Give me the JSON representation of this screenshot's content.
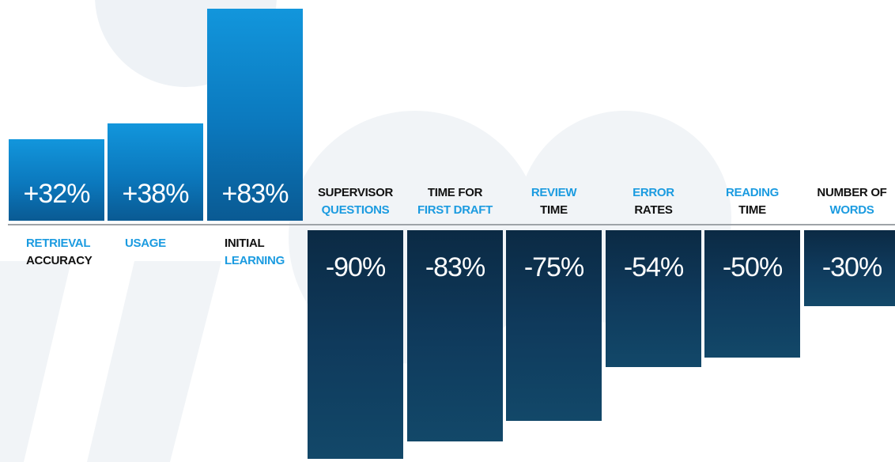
{
  "chart_data": {
    "type": "bar",
    "title": "",
    "xlabel": "",
    "ylabel": "",
    "ylim": [
      -90,
      83
    ],
    "grid": false,
    "legend": "none",
    "colors": {
      "positive": "#0b83cc",
      "negative": "#0f3a5c",
      "label_accent": "#1b9be0",
      "label_dark": "#111111"
    },
    "bars": [
      {
        "id": "retrieval-accuracy",
        "value": 32,
        "label": "+32%",
        "line1": "RETRIEVAL",
        "line1_color": "blue",
        "line2": "ACCURACY",
        "line2_color": "black"
      },
      {
        "id": "usage",
        "value": 38,
        "label": "+38%",
        "line1": "USAGE",
        "line1_color": "blue",
        "line2": "",
        "line2_color": "black"
      },
      {
        "id": "initial-learning",
        "value": 83,
        "label": "+83%",
        "line1": "INITIAL",
        "line1_color": "black",
        "line2": "LEARNING",
        "line2_color": "blue"
      },
      {
        "id": "supervisor-questions",
        "value": -90,
        "label": "-90%",
        "line1": "SUPERVISOR",
        "line1_color": "black",
        "line2": "QUESTIONS",
        "line2_color": "blue"
      },
      {
        "id": "time-for-first-draft",
        "value": -83,
        "label": "-83%",
        "line1": "TIME FOR",
        "line1_color": "black",
        "line2": "FIRST DRAFT",
        "line2_color": "blue"
      },
      {
        "id": "review-time",
        "value": -75,
        "label": "-75%",
        "line1": "REVIEW",
        "line1_color": "blue",
        "line2": "TIME",
        "line2_color": "black"
      },
      {
        "id": "error-rates",
        "value": -54,
        "label": "-54%",
        "line1": "ERROR",
        "line1_color": "blue",
        "line2": "RATES",
        "line2_color": "black"
      },
      {
        "id": "reading-time",
        "value": -50,
        "label": "-50%",
        "line1": "READING",
        "line1_color": "blue",
        "line2": "TIME",
        "line2_color": "black"
      },
      {
        "id": "number-of-words",
        "value": -30,
        "label": "-30%",
        "line1": "NUMBER OF",
        "line1_color": "black",
        "line2": "WORDS",
        "line2_color": "blue"
      }
    ]
  }
}
